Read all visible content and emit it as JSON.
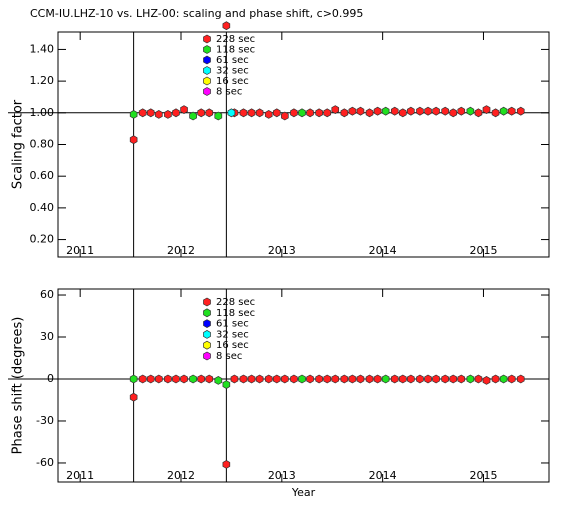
{
  "chart_data": [
    {
      "type": "scatter",
      "title": "CCM-IU.LHZ-10 vs. LHZ-00: scaling and phase shift, c>0.995",
      "y_label": "Scaling factor",
      "xlim": [
        2010.78,
        2015.65
      ],
      "xticks": [
        2011,
        2012,
        2013,
        2014,
        2015
      ],
      "ylim": [
        0.09,
        1.51
      ],
      "yticks": [
        {
          "value": 0.2,
          "label": "0.20"
        },
        {
          "value": 0.4,
          "label": "0.40"
        },
        {
          "value": 0.6,
          "label": "0.60"
        },
        {
          "value": 0.8,
          "label": "0.80"
        },
        {
          "value": 1.0,
          "label": "1.00"
        },
        {
          "value": 1.2,
          "label": "1.20"
        },
        {
          "value": 1.4,
          "label": "1.40"
        }
      ],
      "vlines": [
        2011.53,
        2012.45
      ],
      "hline": 1,
      "series": [
        {
          "name": "228 sec",
          "color": "#ff2020",
          "x": [
            2011.53,
            2011.62,
            2011.7,
            2011.78,
            2011.87,
            2011.95,
            2012.03,
            2012.2,
            2012.28,
            2012.45,
            2012.53,
            2012.62,
            2012.7,
            2012.78,
            2012.87,
            2012.95,
            2013.03,
            2013.12,
            2013.28,
            2013.37,
            2013.45,
            2013.53,
            2013.62,
            2013.7,
            2013.78,
            2013.87,
            2013.95,
            2014.12,
            2014.2,
            2014.28,
            2014.37,
            2014.45,
            2014.53,
            2014.62,
            2014.7,
            2014.78,
            2014.95,
            2015.03,
            2015.12,
            2015.28,
            2015.37
          ],
          "values": [
            0.83,
            1.0,
            1.0,
            0.99,
            0.99,
            1.0,
            1.02,
            1.0,
            1.0,
            1.55,
            1.0,
            1.0,
            1.0,
            1.0,
            0.99,
            1.0,
            0.98,
            1.0,
            1.0,
            1.0,
            1.0,
            1.02,
            1.0,
            1.01,
            1.01,
            1.0,
            1.01,
            1.01,
            1.0,
            1.01,
            1.01,
            1.01,
            1.01,
            1.01,
            1.0,
            1.01,
            1.0,
            1.02,
            1.0,
            1.01,
            1.01
          ]
        },
        {
          "name": "118 sec",
          "color": "#20e020",
          "x": [
            2011.53,
            2012.12,
            2012.37,
            2013.2,
            2014.03,
            2014.87,
            2015.2
          ],
          "values": [
            0.99,
            0.98,
            0.98,
            1.0,
            1.01,
            1.01,
            1.01
          ]
        },
        {
          "name": "61 sec",
          "color": "#0000ff",
          "x": [],
          "values": []
        },
        {
          "name": "32 sec",
          "color": "#00ffff",
          "x": [
            2012.5
          ],
          "values": [
            1.0
          ]
        },
        {
          "name": "16 sec",
          "color": "#ffff00",
          "x": [],
          "values": []
        },
        {
          "name": "8 sec",
          "color": "#ff00ff",
          "x": [],
          "values": []
        }
      ]
    },
    {
      "type": "scatter",
      "x_label": "Year",
      "y_label": "Phase shift (degrees)",
      "xlim": [
        2010.78,
        2015.65
      ],
      "xticks": [
        2011,
        2012,
        2013,
        2014,
        2015
      ],
      "ylim": [
        -73.6,
        64.3
      ],
      "yticks": [
        -60,
        -30,
        0,
        30,
        60
      ],
      "vlines": [
        2011.53,
        2012.45
      ],
      "hline": 0,
      "series": [
        {
          "name": "228 sec",
          "color": "#ff2020",
          "x": [
            2011.53,
            2011.62,
            2011.7,
            2011.78,
            2011.87,
            2011.95,
            2012.03,
            2012.2,
            2012.28,
            2012.45,
            2012.53,
            2012.62,
            2012.7,
            2012.78,
            2012.87,
            2012.95,
            2013.03,
            2013.12,
            2013.28,
            2013.37,
            2013.45,
            2013.53,
            2013.62,
            2013.7,
            2013.78,
            2013.87,
            2013.95,
            2014.12,
            2014.2,
            2014.28,
            2014.37,
            2014.45,
            2014.53,
            2014.62,
            2014.7,
            2014.78,
            2014.95,
            2015.03,
            2015.12,
            2015.28,
            2015.37
          ],
          "values": [
            -13,
            0,
            0,
            0,
            0,
            0,
            0,
            0,
            0,
            -61,
            0,
            0,
            0,
            0,
            0,
            0,
            0,
            0,
            0,
            0,
            0,
            0,
            0,
            0,
            0,
            0,
            0,
            0,
            0,
            0,
            0,
            0,
            0,
            0,
            0,
            0,
            0,
            -1,
            0,
            0,
            0
          ]
        },
        {
          "name": "118 sec",
          "color": "#20e020",
          "x": [
            2011.53,
            2012.12,
            2012.37,
            2012.45,
            2013.2,
            2014.03,
            2014.87,
            2015.2
          ],
          "values": [
            0,
            0,
            -1,
            -4,
            0,
            0,
            0,
            0
          ]
        },
        {
          "name": "61 sec",
          "color": "#0000ff",
          "x": [],
          "values": []
        },
        {
          "name": "32 sec",
          "color": "#00ffff",
          "x": [],
          "values": []
        },
        {
          "name": "16 sec",
          "color": "#ffff00",
          "x": [],
          "values": []
        },
        {
          "name": "8 sec",
          "color": "#ff00ff",
          "x": [],
          "values": []
        }
      ]
    }
  ]
}
